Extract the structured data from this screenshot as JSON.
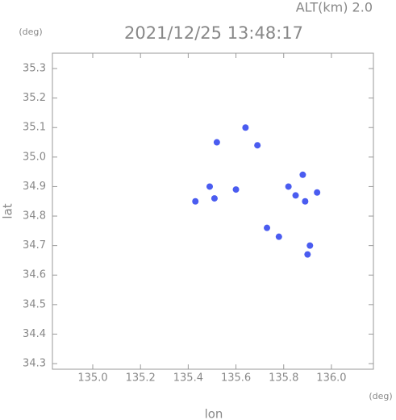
{
  "chart_data": {
    "type": "scatter",
    "title": "2021/12/25 13:48:17",
    "subtitle": "ALT(km) 2.0",
    "y_unit": "(deg)",
    "x_unit": "(deg)",
    "xlabel": "lon",
    "ylabel": "lat",
    "xlim": [
      134.831,
      136.176
    ],
    "ylim": [
      34.281,
      35.352
    ],
    "xticks": [
      {
        "value": 135,
        "label": "135.0"
      },
      135.2,
      135.4,
      135.6,
      135.8,
      {
        "value": 136,
        "label": "136.0"
      }
    ],
    "yticks": [
      34.3,
      34.4,
      34.5,
      34.6,
      34.7,
      34.8,
      34.9,
      {
        "value": 35,
        "label": "35.0"
      },
      35.1,
      35.2,
      35.3
    ],
    "grid": false,
    "series": [
      {
        "color": "#4a5cf0",
        "x": [
          135.52,
          135.64,
          135.69,
          135.49,
          135.43,
          135.51,
          135.6,
          135.82,
          135.85,
          135.88,
          135.89,
          135.94,
          135.73,
          135.78,
          135.9,
          135.91
        ],
        "values": [
          35.05,
          35.1,
          35.04,
          34.9,
          34.85,
          34.86,
          34.89,
          34.9,
          34.87,
          34.94,
          34.85,
          34.88,
          34.76,
          34.73,
          34.67,
          34.7
        ]
      }
    ]
  }
}
